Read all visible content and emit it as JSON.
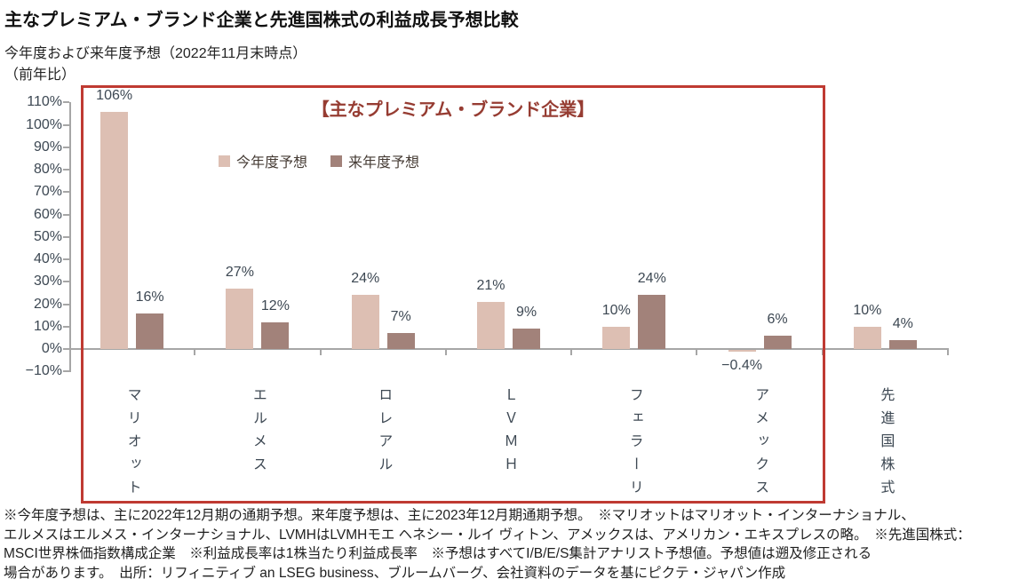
{
  "header": {
    "title": "主なプレミアム・ブランド企業と先進国株式の利益成長予想比較",
    "subtitle": "今年度および来年度予想（2022年11月末時点）",
    "unit_label": "（前年比）"
  },
  "chart_data": {
    "type": "bar",
    "categories": [
      "マリオット",
      "エルメス",
      "ロレアル",
      "ＬＶＭＨ",
      "フェラーリ",
      "アメックス",
      "先進国株式"
    ],
    "series": [
      {
        "name": "今年度予想",
        "color": "#ddbfb3",
        "values": [
          106,
          27,
          24,
          21,
          10,
          -0.4,
          10
        ]
      },
      {
        "name": "来年度予想",
        "color": "#a2827a",
        "values": [
          16,
          12,
          7,
          9,
          24,
          6,
          4
        ]
      }
    ],
    "y_axis": {
      "max": 110,
      "min": -10,
      "step": 10,
      "unit": "%"
    },
    "grid": false,
    "legend_position": "top-center",
    "highlight_box": {
      "label": "【主なプレミアム・ブランド企業】",
      "color": "#bf3a32",
      "covered_categories": [
        "マリオット",
        "エルメス",
        "ロレアル",
        "ＬＶＭＨ",
        "フェラーリ",
        "アメックス"
      ]
    },
    "colors": {
      "axis": "#a6a6a6",
      "label_text": "#3d4853",
      "box_title_text": "#963c32"
    }
  },
  "footnote": {
    "lines": [
      "※今年度予想は、主に2022年12月期の通期予想。来年度予想は、主に2023年12月期通期予想。　※マリオットはマリオット・インターナショナル、",
      "エルメスはエルメス・インターナショナル、LVMHはLVMHモエ ヘネシー・ルイ ヴィトン、アメックスは、アメリカン・エキスプレスの略。　※先進国株式：",
      "MSCI世界株価指数構成企業　※利益成長率は1株当たり利益成長率　※予想はすべてI/B/E/S集計アナリスト予想値。予想値は遡及修正される",
      "場合があります。　出所：リフィニティブ an LSEG business、ブルームバーグ、会社資料のデータを基にピクテ・ジャパン作成"
    ]
  }
}
